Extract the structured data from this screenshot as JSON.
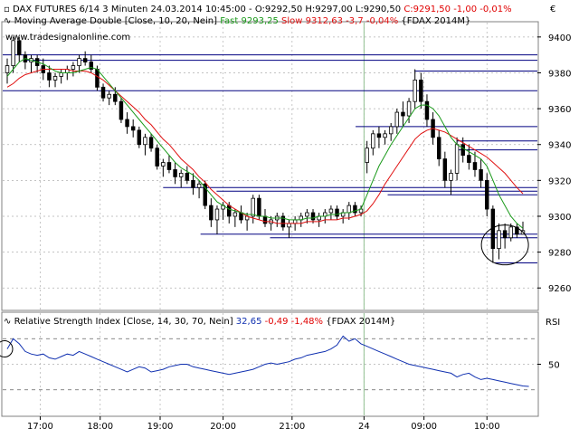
{
  "header": {
    "main_prefix": "DAX FUTURES 6/14 3 Minuten  24.03.2014 10:45:00 - O:9292,50 H:9297,00 L:9290,50 ",
    "main_close": "C:9291,50 -1,00 -0,01%",
    "currency": "€",
    "ma_prefix": "Moving Average Double [Close, 10, 20, Nein] ",
    "ma_fast": "Fast 9293,25",
    "ma_slow": "Slow 9312,63 -3,7 -0,04%",
    "ma_suffix": " {FDAX 2014M}",
    "website": "www.tradesignalonline.com",
    "rsi_prefix": "Relative Strength Index [Close, 14, 30, 70, Nein] ",
    "rsi_value": "32,65",
    "rsi_change": " -0,49 -1,48% ",
    "rsi_suffix": "{FDAX 2014M}",
    "rsi_axis_title": "RSI"
  },
  "colors": {
    "candles": "#000000",
    "fast_ma": "#1a9a1a",
    "slow_ma": "#e01010",
    "support_lines": "#000080",
    "rsi_line": "#1030b0",
    "close_red": "#e00000",
    "grid": "#b0b0b0",
    "session_divider": "#90c090"
  },
  "chart_data": {
    "type": "candlestick",
    "price_axis": {
      "ticks": [
        "9400",
        "9380",
        "9360",
        "9340",
        "9320",
        "9300",
        "9280",
        "9260"
      ],
      "range": [
        9248,
        9408
      ]
    },
    "time_axis": {
      "ticks": [
        "17:00",
        "18:00",
        "19:00",
        "20:00",
        "21:00",
        "24",
        "09:00",
        "10:00"
      ]
    },
    "session_break_label": "24",
    "candles": [
      [
        9380,
        9388,
        9374,
        9384
      ],
      [
        9384,
        9400,
        9380,
        9398
      ],
      [
        9398,
        9400,
        9386,
        9390
      ],
      [
        9390,
        9392,
        9382,
        9386
      ],
      [
        9386,
        9390,
        9380,
        9388
      ],
      [
        9388,
        9390,
        9380,
        9384
      ],
      [
        9384,
        9388,
        9376,
        9380
      ],
      [
        9380,
        9384,
        9372,
        9376
      ],
      [
        9376,
        9380,
        9372,
        9378
      ],
      [
        9378,
        9382,
        9374,
        9380
      ],
      [
        9380,
        9384,
        9376,
        9382
      ],
      [
        9382,
        9386,
        9378,
        9384
      ],
      [
        9384,
        9390,
        9380,
        9388
      ],
      [
        9388,
        9392,
        9384,
        9386
      ],
      [
        9386,
        9390,
        9380,
        9382
      ],
      [
        9382,
        9384,
        9370,
        9372
      ],
      [
        9372,
        9374,
        9364,
        9366
      ],
      [
        9366,
        9370,
        9362,
        9368
      ],
      [
        9368,
        9372,
        9362,
        9364
      ],
      [
        9364,
        9366,
        9352,
        9354
      ],
      [
        9354,
        9358,
        9346,
        9350
      ],
      [
        9350,
        9354,
        9344,
        9348
      ],
      [
        9348,
        9350,
        9338,
        9340
      ],
      [
        9340,
        9346,
        9334,
        9344
      ],
      [
        9344,
        9346,
        9336,
        9338
      ],
      [
        9338,
        9340,
        9326,
        9328
      ],
      [
        9328,
        9332,
        9322,
        9330
      ],
      [
        9330,
        9334,
        9324,
        9326
      ],
      [
        9326,
        9330,
        9318,
        9322
      ],
      [
        9322,
        9326,
        9316,
        9324
      ],
      [
        9324,
        9328,
        9318,
        9320
      ],
      [
        9320,
        9324,
        9312,
        9316
      ],
      [
        9316,
        9320,
        9310,
        9318
      ],
      [
        9318,
        9320,
        9304,
        9306
      ],
      [
        9306,
        9310,
        9294,
        9298
      ],
      [
        9298,
        9306,
        9290,
        9304
      ],
      [
        9304,
        9308,
        9298,
        9306
      ],
      [
        9306,
        9308,
        9296,
        9300
      ],
      [
        9300,
        9304,
        9294,
        9302
      ],
      [
        9302,
        9306,
        9296,
        9298
      ],
      [
        9298,
        9302,
        9292,
        9300
      ],
      [
        9300,
        9312,
        9296,
        9310
      ],
      [
        9310,
        9312,
        9298,
        9300
      ],
      [
        9300,
        9304,
        9294,
        9296
      ],
      [
        9296,
        9300,
        9292,
        9298
      ],
      [
        9298,
        9302,
        9294,
        9300
      ],
      [
        9300,
        9302,
        9292,
        9294
      ],
      [
        9294,
        9298,
        9288,
        9296
      ],
      [
        9296,
        9300,
        9292,
        9298
      ],
      [
        9298,
        9302,
        9294,
        9300
      ],
      [
        9300,
        9304,
        9296,
        9302
      ],
      [
        9302,
        9304,
        9296,
        9298
      ],
      [
        9298,
        9302,
        9294,
        9300
      ],
      [
        9300,
        9304,
        9296,
        9302
      ],
      [
        9302,
        9306,
        9298,
        9304
      ],
      [
        9304,
        9306,
        9298,
        9300
      ],
      [
        9300,
        9304,
        9296,
        9302
      ],
      [
        9302,
        9308,
        9298,
        9306
      ],
      [
        9306,
        9308,
        9300,
        9302
      ],
      [
        9302,
        9306,
        9300,
        9304
      ],
      [
        9330,
        9342,
        9324,
        9338
      ],
      [
        9338,
        9348,
        9334,
        9346
      ],
      [
        9346,
        9350,
        9338,
        9344
      ],
      [
        9344,
        9348,
        9340,
        9346
      ],
      [
        9346,
        9352,
        9342,
        9350
      ],
      [
        9350,
        9360,
        9346,
        9358
      ],
      [
        9358,
        9364,
        9350,
        9356
      ],
      [
        9356,
        9366,
        9352,
        9364
      ],
      [
        9364,
        9382,
        9360,
        9376
      ],
      [
        9376,
        9380,
        9360,
        9364
      ],
      [
        9364,
        9368,
        9350,
        9354
      ],
      [
        9354,
        9358,
        9340,
        9344
      ],
      [
        9344,
        9348,
        9328,
        9332
      ],
      [
        9332,
        9336,
        9316,
        9320
      ],
      [
        9320,
        9326,
        9312,
        9324
      ],
      [
        9324,
        9344,
        9320,
        9340
      ],
      [
        9340,
        9344,
        9330,
        9334
      ],
      [
        9334,
        9340,
        9326,
        9330
      ],
      [
        9330,
        9336,
        9322,
        9326
      ],
      [
        9326,
        9332,
        9316,
        9320
      ],
      [
        9320,
        9324,
        9300,
        9304
      ],
      [
        9304,
        9306,
        9274,
        9282
      ],
      [
        9282,
        9296,
        9276,
        9292
      ],
      [
        9292,
        9296,
        9282,
        9288
      ],
      [
        9288,
        9296,
        9286,
        9294
      ],
      [
        9294,
        9296,
        9288,
        9290
      ],
      [
        9290,
        9297,
        9290,
        9292
      ]
    ],
    "fast_ma": [
      9378,
      9382,
      9386,
      9388,
      9387,
      9386,
      9385,
      9383,
      9381,
      9380,
      9380,
      9380,
      9381,
      9382,
      9383,
      9382,
      9378,
      9374,
      9370,
      9366,
      9362,
      9358,
      9354,
      9350,
      9346,
      9342,
      9338,
      9334,
      9330,
      9327,
      9325,
      9323,
      9320,
      9316,
      9312,
      9308,
      9306,
      9304,
      9303,
      9302,
      9301,
      9301,
      9300,
      9300,
      9299,
      9299,
      9299,
      9298,
      9298,
      9298,
      9299,
      9299,
      9300,
      9300,
      9301,
      9301,
      9302,
      9302,
      9303,
      9304,
      9312,
      9320,
      9328,
      9334,
      9340,
      9345,
      9350,
      9355,
      9360,
      9362,
      9362,
      9360,
      9356,
      9350,
      9344,
      9340,
      9338,
      9336,
      9334,
      9332,
      9328,
      9320,
      9312,
      9306,
      9300,
      9296,
      9293.25
    ],
    "slow_ma": [
      9372,
      9374,
      9377,
      9379,
      9380,
      9381,
      9382,
      9382,
      9382,
      9382,
      9382,
      9381,
      9381,
      9381,
      9380,
      9378,
      9376,
      9373,
      9370,
      9367,
      9364,
      9361,
      9358,
      9354,
      9351,
      9347,
      9343,
      9340,
      9336,
      9332,
      9329,
      9326,
      9322,
      9319,
      9315,
      9312,
      9309,
      9306,
      9304,
      9302,
      9300,
      9299,
      9298,
      9297,
      9297,
      9296,
      9296,
      9296,
      9296,
      9296,
      9297,
      9297,
      9297,
      9298,
      9298,
      9298,
      9299,
      9299,
      9300,
      9301,
      9303,
      9307,
      9312,
      9318,
      9323,
      9328,
      9333,
      9338,
      9343,
      9346,
      9348,
      9349,
      9348,
      9347,
      9345,
      9343,
      9341,
      9339,
      9337,
      9335,
      9333,
      9330,
      9327,
      9324,
      9320,
      9316,
      9312.63
    ],
    "horizontal_lines": [
      {
        "price": 9390,
        "from": 0.0,
        "to": 1.0
      },
      {
        "price": 9387,
        "from": 0.04,
        "to": 1.0
      },
      {
        "price": 9381,
        "from": 0.77,
        "to": 1.0
      },
      {
        "price": 9370,
        "from": 0.0,
        "to": 1.0
      },
      {
        "price": 9350,
        "from": 0.66,
        "to": 1.0
      },
      {
        "price": 9342,
        "from": 0.85,
        "to": 1.0
      },
      {
        "price": 9337,
        "from": 0.85,
        "to": 1.0
      },
      {
        "price": 9316,
        "from": 0.3,
        "to": 1.0
      },
      {
        "price": 9314,
        "from": 0.4,
        "to": 1.0
      },
      {
        "price": 9312,
        "from": 0.72,
        "to": 1.0
      },
      {
        "price": 9290,
        "from": 0.37,
        "to": 1.0
      },
      {
        "price": 9288,
        "from": 0.5,
        "to": 1.0
      },
      {
        "price": 9274,
        "from": 0.92,
        "to": 1.0
      }
    ],
    "rsi": {
      "ticks": [
        "50"
      ],
      "range": [
        10,
        90
      ],
      "values": [
        62,
        70,
        66,
        60,
        58,
        57,
        58,
        55,
        54,
        56,
        58,
        57,
        60,
        58,
        56,
        54,
        52,
        50,
        48,
        46,
        44,
        46,
        48,
        47,
        44,
        45,
        46,
        48,
        49,
        50,
        50,
        48,
        47,
        46,
        45,
        44,
        43,
        42,
        43,
        44,
        45,
        46,
        48,
        50,
        51,
        50,
        51,
        52,
        54,
        55,
        57,
        58,
        59,
        60,
        62,
        65,
        72,
        68,
        70,
        66,
        64,
        62,
        60,
        58,
        56,
        54,
        52,
        50,
        49,
        48,
        47,
        46,
        45,
        44,
        43,
        40,
        42,
        43,
        40,
        38,
        39,
        38,
        37,
        36,
        35,
        34,
        33,
        32.65
      ]
    }
  }
}
